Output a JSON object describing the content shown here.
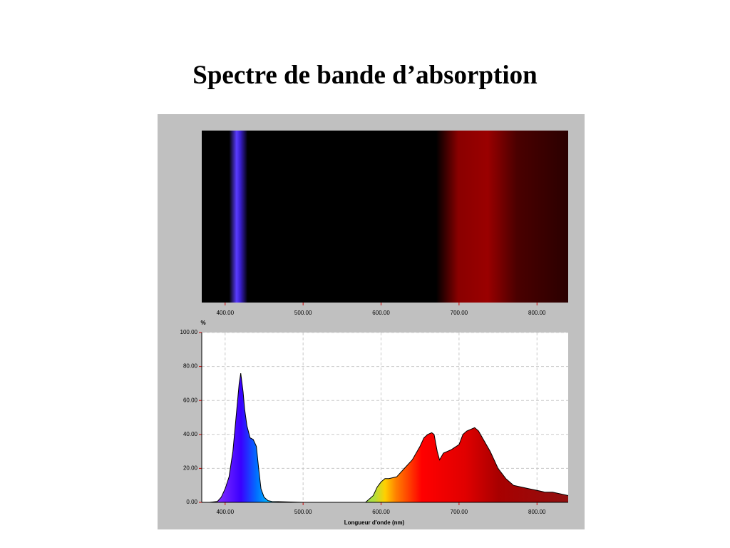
{
  "chart_data": {
    "type": "area",
    "title": "Spectre de bande d’absorption",
    "x_label": "Longueur d'onde (nm)",
    "y_label": "%",
    "x": [
      370,
      380,
      390,
      395,
      400,
      405,
      410,
      415,
      418,
      420,
      423,
      425,
      428,
      432,
      436,
      440,
      443,
      446,
      450,
      455,
      460,
      500,
      550,
      580,
      590,
      595,
      600,
      605,
      610,
      620,
      630,
      640,
      650,
      655,
      660,
      665,
      668,
      672,
      675,
      680,
      690,
      700,
      705,
      710,
      715,
      720,
      725,
      730,
      740,
      750,
      760,
      770,
      780,
      790,
      800,
      810,
      820,
      830,
      840
    ],
    "values": [
      0,
      0,
      0.5,
      3,
      8,
      15,
      30,
      55,
      70,
      76,
      65,
      55,
      45,
      38,
      37,
      33,
      20,
      8,
      3,
      1,
      0.5,
      0,
      0,
      0,
      4,
      9,
      12,
      14,
      14,
      15,
      20,
      25,
      33,
      38,
      40,
      41,
      40,
      30,
      25,
      29,
      31,
      34,
      40,
      42,
      43,
      44,
      42,
      38,
      30,
      20,
      14,
      10,
      9,
      8,
      7,
      6,
      6,
      5,
      4
    ],
    "xlim": [
      370,
      840
    ],
    "ylim": [
      0,
      100
    ],
    "xticks": [
      {
        "value": 400,
        "label": "400.00"
      },
      {
        "value": 500,
        "label": "500.00"
      },
      {
        "value": 600,
        "label": "600.00"
      },
      {
        "value": 700,
        "label": "700.00"
      },
      {
        "value": 800,
        "label": "800.00"
      }
    ],
    "yticks": [
      {
        "value": 0,
        "label": "0.00"
      },
      {
        "value": 20,
        "label": "20.00"
      },
      {
        "value": 40,
        "label": "40.00"
      },
      {
        "value": 60,
        "label": "60.00"
      },
      {
        "value": 80,
        "label": "80.00"
      },
      {
        "value": 100,
        "label": "100.00"
      }
    ],
    "grid": true
  }
}
